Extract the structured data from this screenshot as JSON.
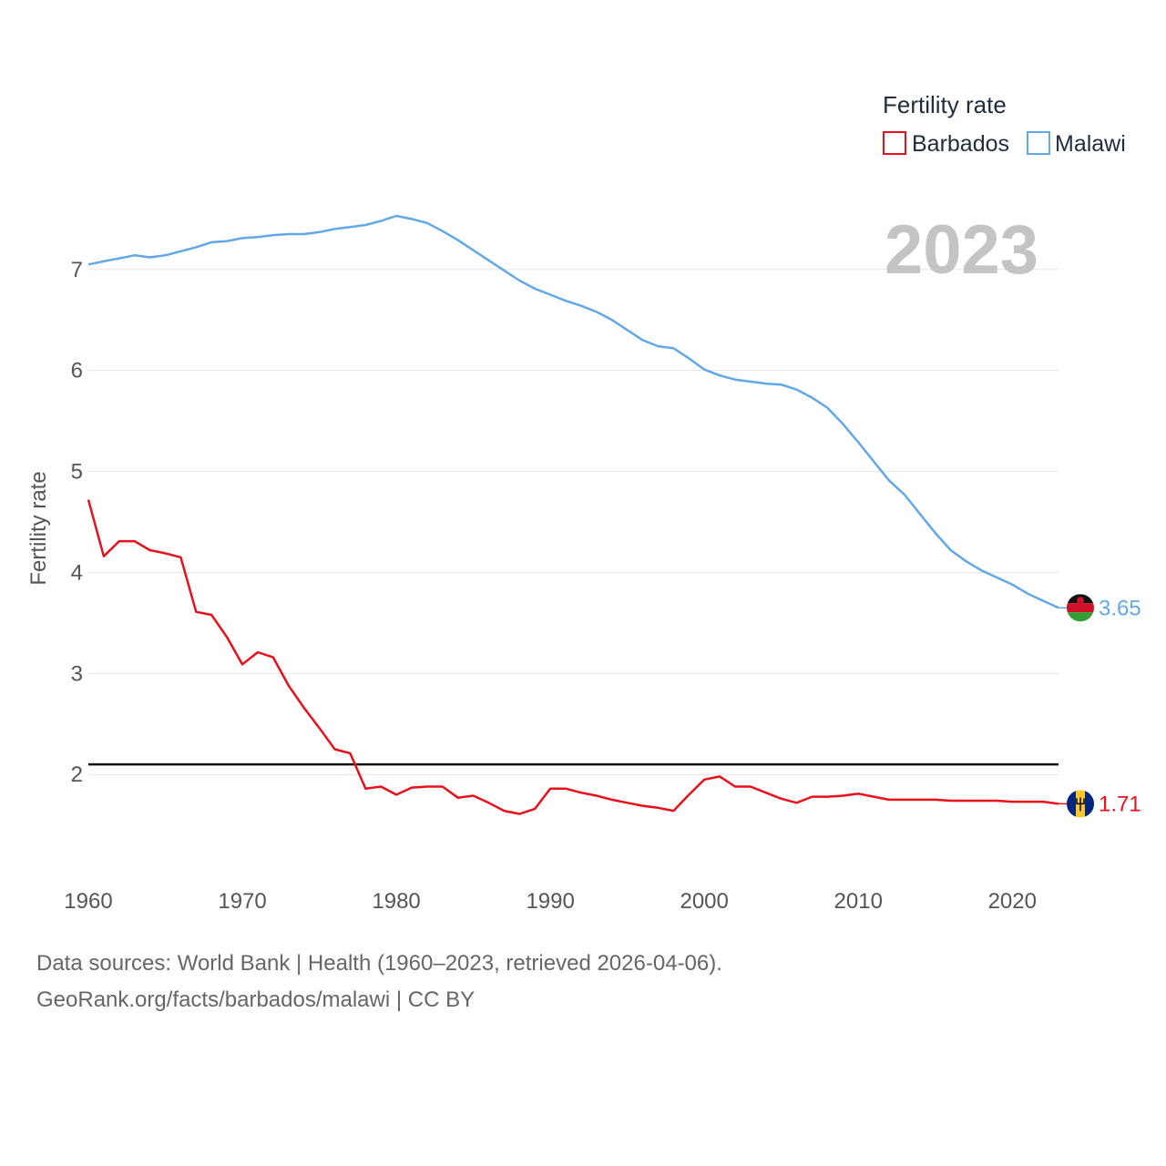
{
  "chart_data": {
    "type": "line",
    "title": "Fertility rate",
    "ylabel": "Fertility rate",
    "xlabel": "",
    "year_display": "2023",
    "xlim": [
      1960,
      2023
    ],
    "ylim": [
      1.1,
      7.9
    ],
    "x_ticks": [
      1960,
      1970,
      1980,
      1990,
      2000,
      2010,
      2020
    ],
    "y_ticks": [
      2,
      3,
      4,
      5,
      6,
      7
    ],
    "reference_line": 2.1,
    "x": [
      1960,
      1961,
      1962,
      1963,
      1964,
      1965,
      1966,
      1967,
      1968,
      1969,
      1970,
      1971,
      1972,
      1973,
      1974,
      1975,
      1976,
      1977,
      1978,
      1979,
      1980,
      1981,
      1982,
      1983,
      1984,
      1985,
      1986,
      1987,
      1988,
      1989,
      1990,
      1991,
      1992,
      1993,
      1994,
      1995,
      1996,
      1997,
      1998,
      1999,
      2000,
      2001,
      2002,
      2003,
      2004,
      2005,
      2006,
      2007,
      2008,
      2009,
      2010,
      2011,
      2012,
      2013,
      2014,
      2015,
      2016,
      2017,
      2018,
      2019,
      2020,
      2021,
      2022,
      2023
    ],
    "series": [
      {
        "name": "Barbados",
        "color": "#e8101a",
        "end_label": "1.71",
        "flag": "barbados-flag",
        "values": [
          4.72,
          4.16,
          4.31,
          4.31,
          4.22,
          4.19,
          4.15,
          3.61,
          3.58,
          3.36,
          3.09,
          3.21,
          3.16,
          2.88,
          2.66,
          2.46,
          2.25,
          2.21,
          1.86,
          1.88,
          1.8,
          1.87,
          1.88,
          1.88,
          1.77,
          1.79,
          1.72,
          1.64,
          1.61,
          1.66,
          1.86,
          1.86,
          1.82,
          1.79,
          1.75,
          1.72,
          1.69,
          1.67,
          1.64,
          1.8,
          1.95,
          1.98,
          1.88,
          1.88,
          1.82,
          1.76,
          1.72,
          1.78,
          1.78,
          1.79,
          1.81,
          1.78,
          1.75,
          1.75,
          1.75,
          1.75,
          1.74,
          1.74,
          1.74,
          1.74,
          1.73,
          1.73,
          1.73,
          1.71
        ]
      },
      {
        "name": "Malawi",
        "color": "#63a8e6",
        "end_label": "3.65",
        "flag": "malawi-flag",
        "values": [
          7.05,
          7.08,
          7.11,
          7.14,
          7.12,
          7.14,
          7.18,
          7.22,
          7.27,
          7.28,
          7.31,
          7.32,
          7.34,
          7.35,
          7.35,
          7.37,
          7.4,
          7.42,
          7.44,
          7.48,
          7.53,
          7.5,
          7.46,
          7.38,
          7.29,
          7.19,
          7.09,
          6.99,
          6.89,
          6.81,
          6.75,
          6.69,
          6.64,
          6.58,
          6.5,
          6.4,
          6.3,
          6.24,
          6.22,
          6.12,
          6.01,
          5.95,
          5.91,
          5.89,
          5.87,
          5.86,
          5.81,
          5.73,
          5.63,
          5.47,
          5.29,
          5.1,
          4.91,
          4.77,
          4.58,
          4.39,
          4.22,
          4.11,
          4.02,
          3.95,
          3.88,
          3.79,
          3.72,
          3.65
        ]
      }
    ]
  },
  "footer": {
    "source_line": "Data sources: World Bank | Health (1960–2023, retrieved 2026-04-06).",
    "credit_line": "GeoRank.org/facts/barbados/malawi | CC BY"
  }
}
